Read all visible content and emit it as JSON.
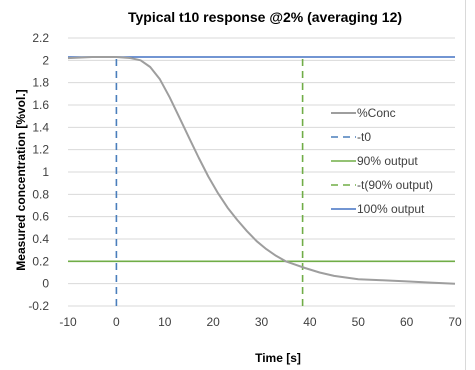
{
  "chart_data": {
    "type": "line",
    "title": "Typical t10 response @2% (averaging 12)",
    "xlabel": "Time [s]",
    "ylabel": "Measured concentration [%vol.]",
    "xlim": [
      -10,
      70
    ],
    "ylim": [
      -0.2,
      2.2
    ],
    "xticks": [
      -10,
      0,
      10,
      20,
      30,
      40,
      50,
      60,
      70
    ],
    "yticks": [
      -0.2,
      0,
      0.2,
      0.4,
      0.6,
      0.8,
      1,
      1.2,
      1.4,
      1.6,
      1.8,
      2,
      2.2
    ],
    "grid": "horizontal",
    "legend_position": "right",
    "series": [
      {
        "name": "%Conc",
        "style": "solid",
        "color": "#9e9e9e",
        "x": [
          -10,
          -5,
          0,
          3,
          5,
          7,
          9,
          11,
          13,
          15,
          17,
          19,
          21,
          23,
          25,
          27,
          29,
          31,
          33,
          35,
          37,
          39,
          42,
          45,
          50,
          55,
          60,
          65,
          70
        ],
        "y": [
          2.02,
          2.03,
          2.03,
          2.02,
          2.0,
          1.94,
          1.83,
          1.67,
          1.49,
          1.31,
          1.13,
          0.96,
          0.81,
          0.68,
          0.57,
          0.47,
          0.38,
          0.31,
          0.25,
          0.2,
          0.17,
          0.14,
          0.1,
          0.07,
          0.04,
          0.03,
          0.02,
          0.01,
          0.0
        ]
      },
      {
        "name": "t0",
        "style": "dashed",
        "color": "#4a7ebb",
        "x": [
          0,
          0
        ],
        "y": [
          -0.2,
          2.03
        ]
      },
      {
        "name": "90% output",
        "style": "solid",
        "color": "#70ad47",
        "x": [
          -10,
          70
        ],
        "y": [
          0.2,
          0.2
        ]
      },
      {
        "name": "t(90% output)",
        "style": "dashed",
        "color": "#70ad47",
        "x": [
          38.5,
          38.5
        ],
        "y": [
          -0.2,
          2.03
        ]
      },
      {
        "name": "100% output",
        "style": "solid",
        "color": "#4472c4",
        "x": [
          -10,
          70
        ],
        "y": [
          2.03,
          2.03
        ]
      }
    ],
    "legend": [
      {
        "label": "%Conc",
        "style": "solid",
        "color": "#9e9e9e"
      },
      {
        "label": "-t0",
        "style": "dashed",
        "color": "#4a7ebb"
      },
      {
        "label": "90% output",
        "style": "solid",
        "color": "#70ad47"
      },
      {
        "label": "-t(90% output)",
        "style": "dashed",
        "color": "#70ad47"
      },
      {
        "label": "100% output",
        "style": "solid",
        "color": "#4472c4"
      }
    ],
    "colors": {
      "grid": "#d9d9d9",
      "text": "#404040"
    }
  }
}
